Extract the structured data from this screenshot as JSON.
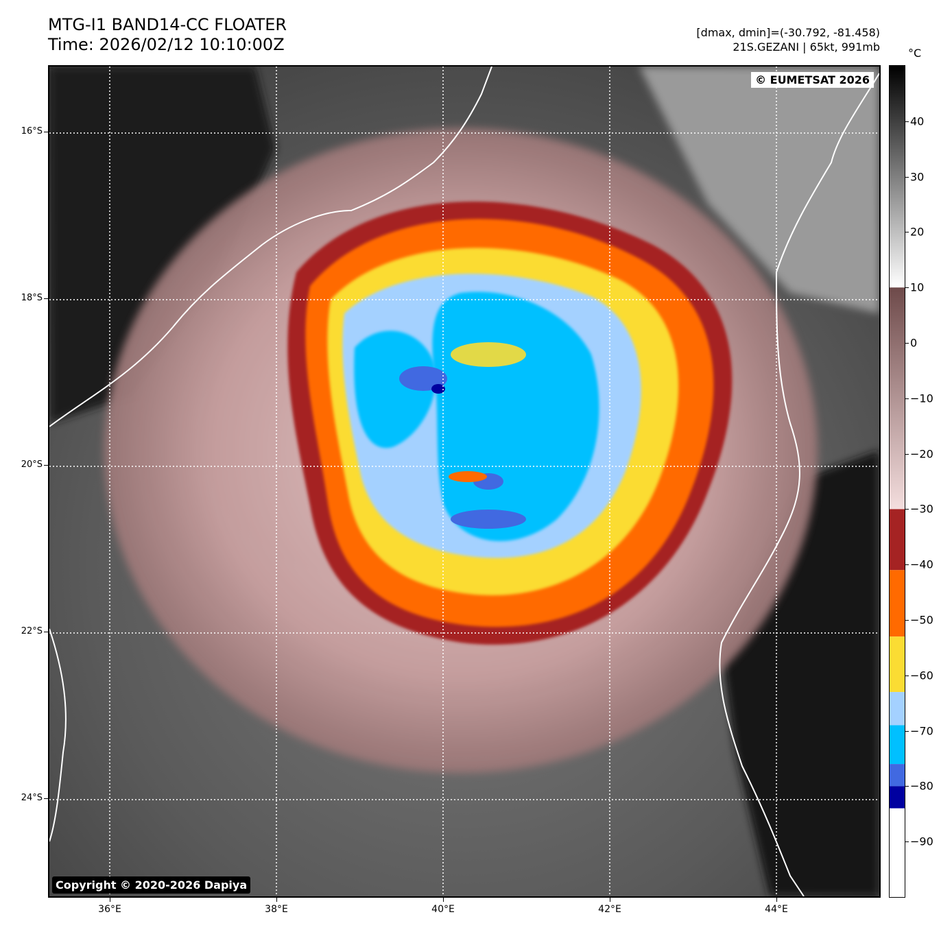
{
  "header": {
    "title_line1": "MTG-I1 BAND14-CC FLOATER",
    "title_line2": "Time: 2026/02/12 10:10:00Z",
    "range_line": "[dmax, dmin]=(-30.792, -81.458)",
    "storm_line": "21S.GEZANI | 65kt, 991mb"
  },
  "map": {
    "watermark": "© EUMETSAT 2026",
    "copyright": "Copyright © 2020-2026 Dapiya",
    "lat_labels": [
      "16°S",
      "18°S",
      "20°S",
      "22°S",
      "24°S"
    ],
    "lon_labels": [
      "36°E",
      "38°E",
      "40°E",
      "42°E",
      "44°E"
    ],
    "gridline_style": "dotted white",
    "coastline_color": "#ffffff"
  },
  "colorbar": {
    "unit": "°C",
    "tick_labels": [
      "40",
      "30",
      "20",
      "10",
      "0",
      "−10",
      "−20",
      "−30",
      "−40",
      "−50",
      "−60",
      "−70",
      "−80",
      "−90"
    ],
    "tick_values": [
      40,
      30,
      20,
      10,
      0,
      -10,
      -20,
      -30,
      -40,
      -50,
      -60,
      -70,
      -80,
      -90
    ],
    "range": [
      -100,
      50
    ],
    "bands": [
      {
        "from": 50,
        "to": 10,
        "kind": "gradient",
        "colors": [
          "#000000",
          "#ffffff"
        ]
      },
      {
        "from": 10,
        "to": -30,
        "kind": "gradient",
        "colors": [
          "#6e4a4a",
          "#f4dede"
        ]
      },
      {
        "from": -30,
        "to": -41,
        "kind": "solid",
        "colors": [
          "#a52323"
        ]
      },
      {
        "from": -41,
        "to": -53,
        "kind": "solid",
        "colors": [
          "#ff6a00"
        ]
      },
      {
        "from": -53,
        "to": -63,
        "kind": "solid",
        "colors": [
          "#fbdc33"
        ]
      },
      {
        "from": -63,
        "to": -69,
        "kind": "solid",
        "colors": [
          "#a4d1ff"
        ]
      },
      {
        "from": -69,
        "to": -76,
        "kind": "solid",
        "colors": [
          "#00c0ff"
        ]
      },
      {
        "from": -76,
        "to": -80,
        "kind": "solid",
        "colors": [
          "#4169e1"
        ]
      },
      {
        "from": -80,
        "to": -84,
        "kind": "solid",
        "colors": [
          "#0000a0"
        ]
      },
      {
        "from": -84,
        "to": -100,
        "kind": "solid",
        "colors": [
          "#ffffff"
        ]
      }
    ]
  }
}
